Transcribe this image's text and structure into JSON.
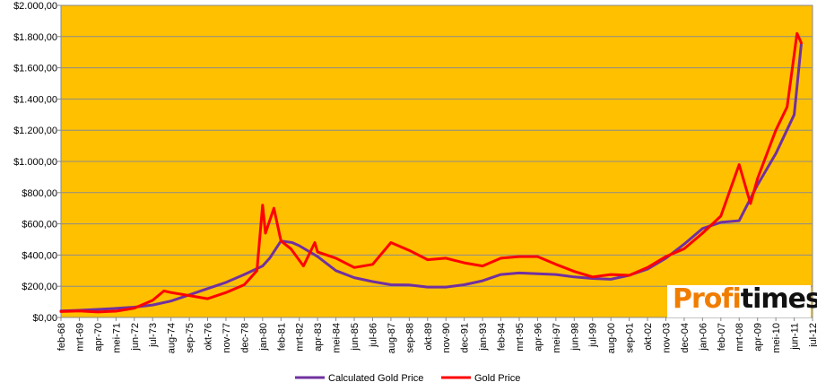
{
  "chart_data": {
    "type": "line",
    "title": "",
    "xlabel": "",
    "ylabel": "",
    "ylim": [
      0,
      2000
    ],
    "y_ticks": [
      "$0,00",
      "$200,00",
      "$400,00",
      "$600,00",
      "$800,00",
      "$1.000,00",
      "$1.200,00",
      "$1.400,00",
      "$1.600,00",
      "$1.800,00",
      "$2.000,00"
    ],
    "x_ticks": [
      "feb-68",
      "mrt-69",
      "apr-70",
      "mei-71",
      "jun-72",
      "jul-73",
      "aug-74",
      "sep-75",
      "okt-76",
      "nov-77",
      "dec-78",
      "jan-80",
      "feb-81",
      "mrt-82",
      "apr-83",
      "mei-84",
      "jun-85",
      "jul-86",
      "aug-87",
      "sep-88",
      "okt-89",
      "nov-90",
      "dec-91",
      "jan-93",
      "feb-94",
      "mrt-95",
      "apr-96",
      "mei-97",
      "jun-98",
      "jul-99",
      "aug-00",
      "sep-01",
      "okt-02",
      "nov-03",
      "dec-04",
      "jan-06",
      "feb-07",
      "mrt-08",
      "apr-09",
      "mei-10",
      "jun-11",
      "jul-12"
    ],
    "x_range": [
      "1968-02",
      "2012-07"
    ],
    "plot_background": "#FFC000",
    "grid": true,
    "legend_position": "bottom",
    "series": [
      {
        "name": "Calculated Gold Price",
        "color": "#7030A0",
        "points": [
          [
            "1968-02",
            42
          ],
          [
            "1969-03",
            46
          ],
          [
            "1970-04",
            52
          ],
          [
            "1971-05",
            58
          ],
          [
            "1972-06",
            66
          ],
          [
            "1973-07",
            80
          ],
          [
            "1974-08",
            105
          ],
          [
            "1975-09",
            145
          ],
          [
            "1976-10",
            185
          ],
          [
            "1977-11",
            225
          ],
          [
            "1978-12",
            275
          ],
          [
            "1980-01",
            330
          ],
          [
            "1980-06",
            380
          ],
          [
            "1981-02",
            490
          ],
          [
            "1981-10",
            480
          ],
          [
            "1982-03",
            460
          ],
          [
            "1983-04",
            390
          ],
          [
            "1984-05",
            300
          ],
          [
            "1985-06",
            255
          ],
          [
            "1986-07",
            230
          ],
          [
            "1987-08",
            210
          ],
          [
            "1988-09",
            208
          ],
          [
            "1989-10",
            195
          ],
          [
            "1990-11",
            195
          ],
          [
            "1991-12",
            210
          ],
          [
            "1993-01",
            235
          ],
          [
            "1994-02",
            275
          ],
          [
            "1995-03",
            285
          ],
          [
            "1996-04",
            280
          ],
          [
            "1997-05",
            275
          ],
          [
            "1998-06",
            260
          ],
          [
            "1999-07",
            250
          ],
          [
            "2000-08",
            245
          ],
          [
            "2001-09",
            270
          ],
          [
            "2002-10",
            310
          ],
          [
            "2003-11",
            380
          ],
          [
            "2004-12",
            470
          ],
          [
            "2006-01",
            570
          ],
          [
            "2007-02",
            610
          ],
          [
            "2008-03",
            620
          ],
          [
            "2009-04",
            850
          ],
          [
            "2010-05",
            1050
          ],
          [
            "2011-06",
            1300
          ],
          [
            "2011-11",
            1750
          ]
        ]
      },
      {
        "name": "Gold Price",
        "color": "#FF0000",
        "points": [
          [
            "1968-02",
            38
          ],
          [
            "1969-03",
            42
          ],
          [
            "1970-04",
            35
          ],
          [
            "1971-05",
            40
          ],
          [
            "1972-06",
            60
          ],
          [
            "1973-07",
            110
          ],
          [
            "1974-03",
            170
          ],
          [
            "1974-08",
            160
          ],
          [
            "1975-09",
            140
          ],
          [
            "1976-10",
            120
          ],
          [
            "1977-11",
            160
          ],
          [
            "1978-12",
            210
          ],
          [
            "1979-09",
            300
          ],
          [
            "1980-01",
            720
          ],
          [
            "1980-03",
            540
          ],
          [
            "1980-09",
            700
          ],
          [
            "1981-02",
            490
          ],
          [
            "1981-09",
            440
          ],
          [
            "1982-06",
            330
          ],
          [
            "1983-02",
            480
          ],
          [
            "1983-04",
            420
          ],
          [
            "1984-05",
            380
          ],
          [
            "1985-06",
            320
          ],
          [
            "1986-07",
            340
          ],
          [
            "1987-08",
            480
          ],
          [
            "1988-09",
            430
          ],
          [
            "1989-10",
            370
          ],
          [
            "1990-11",
            380
          ],
          [
            "1991-12",
            350
          ],
          [
            "1993-01",
            330
          ],
          [
            "1994-02",
            380
          ],
          [
            "1995-03",
            390
          ],
          [
            "1996-04",
            390
          ],
          [
            "1997-05",
            340
          ],
          [
            "1998-06",
            295
          ],
          [
            "1999-07",
            260
          ],
          [
            "2000-08",
            275
          ],
          [
            "2001-09",
            270
          ],
          [
            "2002-10",
            320
          ],
          [
            "2003-11",
            390
          ],
          [
            "2004-12",
            440
          ],
          [
            "2006-01",
            540
          ],
          [
            "2007-02",
            650
          ],
          [
            "2008-03",
            980
          ],
          [
            "2008-11",
            730
          ],
          [
            "2009-04",
            890
          ],
          [
            "2010-05",
            1200
          ],
          [
            "2011-01",
            1350
          ],
          [
            "2011-08",
            1820
          ],
          [
            "2011-11",
            1760
          ]
        ]
      }
    ]
  },
  "watermark": {
    "part1": "Profi",
    "part2": "times"
  }
}
